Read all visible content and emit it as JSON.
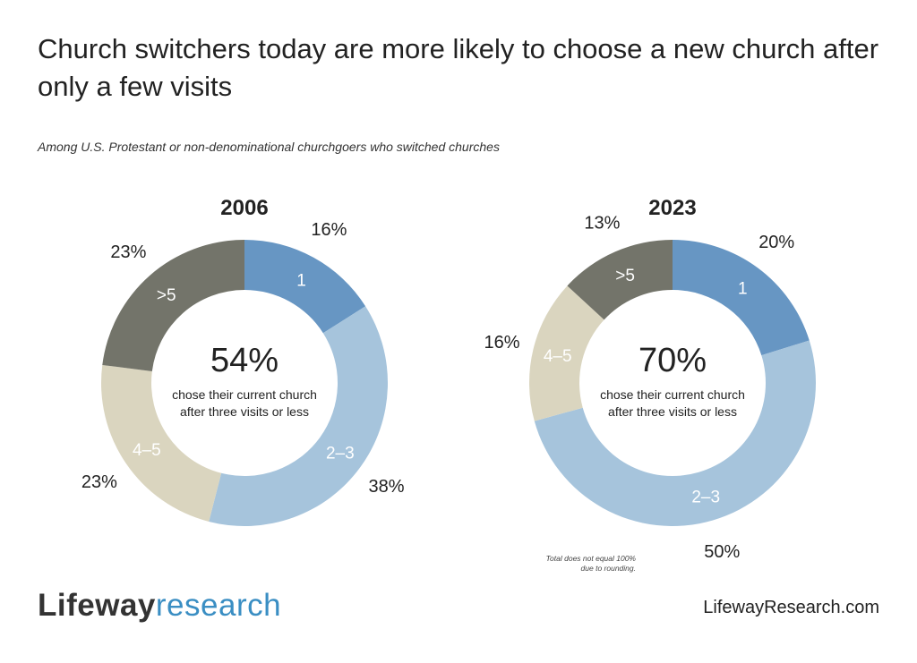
{
  "header": {
    "title": "Church switchers today are more likely to choose a new church after only a few visits",
    "subtitle": "Among U.S. Protestant or non-denominational churchgoers who switched churches"
  },
  "footer": {
    "logo_part1": "Lifeway",
    "logo_part2": "research",
    "website": "LifewayResearch.com",
    "note_line1": "Total does not equal 100%",
    "note_line2": "due to rounding."
  },
  "colors": {
    "one": "#6796c3",
    "two_three": "#a6c4dc",
    "four_five": "#dad5bf",
    "more_than_five": "#73746a",
    "logo_accent": "#3a8ec3"
  },
  "chart_data": [
    {
      "type": "pie",
      "subtype": "donut",
      "title": "2006",
      "categories": [
        "1",
        ">5",
        "4-5",
        "2-3"
      ],
      "slices": [
        {
          "label": "1",
          "value": 16,
          "value_label": "16%"
        },
        {
          "label": "2-3",
          "value": 38,
          "value_label": "38%"
        },
        {
          "label": "4-5",
          "value": 23,
          "value_label": "23%"
        },
        {
          "label": ">5",
          "value": 23,
          "value_label": "23%"
        }
      ],
      "center_value": "54%",
      "center_text_line1": "chose their current church",
      "center_text_line2": "after three visits or less"
    },
    {
      "type": "pie",
      "subtype": "donut",
      "title": "2023",
      "slices": [
        {
          "label": "1",
          "value": 20,
          "value_label": "20%"
        },
        {
          "label": "2-3",
          "value": 50,
          "value_label": "50%"
        },
        {
          "label": "4-5",
          "value": 16,
          "value_label": "16%"
        },
        {
          "label": ">5",
          "value": 13,
          "value_label": "13%"
        }
      ],
      "center_value": "70%",
      "center_text_line1": "chose their current church",
      "center_text_line2": "after three visits or less"
    }
  ]
}
